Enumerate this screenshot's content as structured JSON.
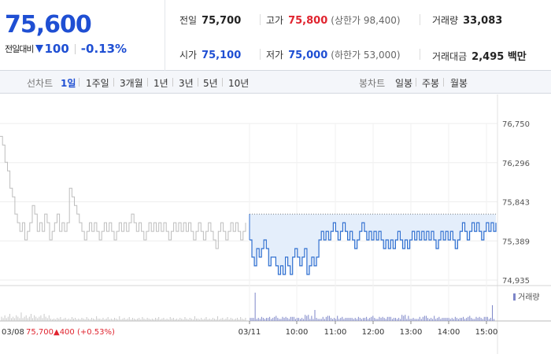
{
  "quote": {
    "price": "75,600",
    "change_label": "전일대비",
    "change_amount": "100",
    "change_pct": "-0.13%"
  },
  "stats": {
    "prev_close": {
      "label": "전일",
      "value": "75,700"
    },
    "high": {
      "label": "고가",
      "value": "75,800",
      "note": "(상한가 98,400)"
    },
    "volume": {
      "label": "거래량",
      "value": "33,083"
    },
    "open": {
      "label": "시가",
      "value": "75,100"
    },
    "low": {
      "label": "저가",
      "value": "75,000",
      "note": "(하한가 53,000)"
    },
    "turnover": {
      "label": "거래대금",
      "value": "2,495 백만"
    }
  },
  "line_tabs": {
    "label": "선차트",
    "items": [
      "1일",
      "1주일",
      "3개월",
      "1년",
      "3년",
      "5년",
      "10년"
    ],
    "active": "1일"
  },
  "candle_tabs": {
    "label": "봉차트",
    "items": [
      "일봉",
      "주봉",
      "월봉"
    ]
  },
  "chart": {
    "volume_legend": "거래량",
    "prev_day_date": "03/08",
    "prev_day_close": "75,700",
    "prev_day_change": "▲400 (+0.53%)",
    "colors": {
      "today": "#2f6fd0",
      "prev": "#bdbdbd",
      "fill": "#e4eefb",
      "up": "#e0242f"
    }
  },
  "chart_data": {
    "type": "line",
    "y_ticks": [
      "76,750",
      "76,296",
      "75,843",
      "75,389",
      "74,935"
    ],
    "ylim": [
      74935,
      76750
    ],
    "x_ticks": [
      "03/11",
      "10:00",
      "11:00",
      "12:00",
      "13:00",
      "14:00",
      "15:00"
    ],
    "reference_close": 75700,
    "series": [
      {
        "values": [
          76600,
          76500,
          76300,
          76200,
          76000,
          75900,
          75700,
          75600,
          75500,
          75600,
          75400,
          75500,
          75600,
          75800,
          75700,
          75500,
          75600,
          75500,
          75700,
          75600,
          75400,
          75500,
          75600,
          75700,
          75500,
          75600,
          75500,
          75600,
          76000,
          75900,
          75800,
          75700,
          75600,
          75500,
          75400,
          75500,
          75600,
          75500,
          75600,
          75500,
          75400,
          75500,
          75600,
          75500,
          75600,
          75500,
          75400,
          75500,
          75600,
          75500,
          75600,
          75500,
          75600,
          75700,
          75600,
          75500,
          75600,
          75500,
          75400,
          75500,
          75600,
          75500,
          75600,
          75500,
          75600,
          75500,
          75600,
          75500,
          75400,
          75500,
          75600,
          75500,
          75600,
          75500,
          75600,
          75500,
          75600,
          75500,
          75400,
          75500,
          75600,
          75500,
          75400,
          75500,
          75600,
          75500,
          75400,
          75300,
          75500,
          75600,
          75500,
          75400,
          75500,
          75600,
          75500,
          75600,
          75500,
          75400,
          75500,
          75600
        ]
      },
      {
        "values": [
          75400,
          75200,
          75100,
          75300,
          75200,
          75300,
          75400,
          75300,
          75100,
          75200,
          75200,
          75100,
          75000,
          75100,
          75000,
          75200,
          75100,
          75000,
          75200,
          75300,
          75200,
          75100,
          75200,
          75300,
          75000,
          75100,
          75200,
          75100,
          75200,
          75400,
          75500,
          75400,
          75500,
          75400,
          75500,
          75600,
          75500,
          75400,
          75500,
          75600,
          75500,
          75400,
          75500,
          75400,
          75300,
          75400,
          75500,
          75600,
          75500,
          75400,
          75500,
          75400,
          75500,
          75400,
          75500,
          75400,
          75300,
          75400,
          75300,
          75400,
          75300,
          75400,
          75500,
          75400,
          75300,
          75400,
          75300,
          75400,
          75500,
          75400,
          75500,
          75400,
          75500,
          75400,
          75500,
          75400,
          75500,
          75400,
          75300,
          75400,
          75500,
          75400,
          75500,
          75400,
          75500,
          75400,
          75300,
          75400,
          75500,
          75600,
          75500,
          75400,
          75500,
          75600,
          75500,
          75600,
          75500,
          75400,
          75500,
          75600,
          75500,
          75600,
          75500,
          75600
        ]
      }
    ]
  }
}
